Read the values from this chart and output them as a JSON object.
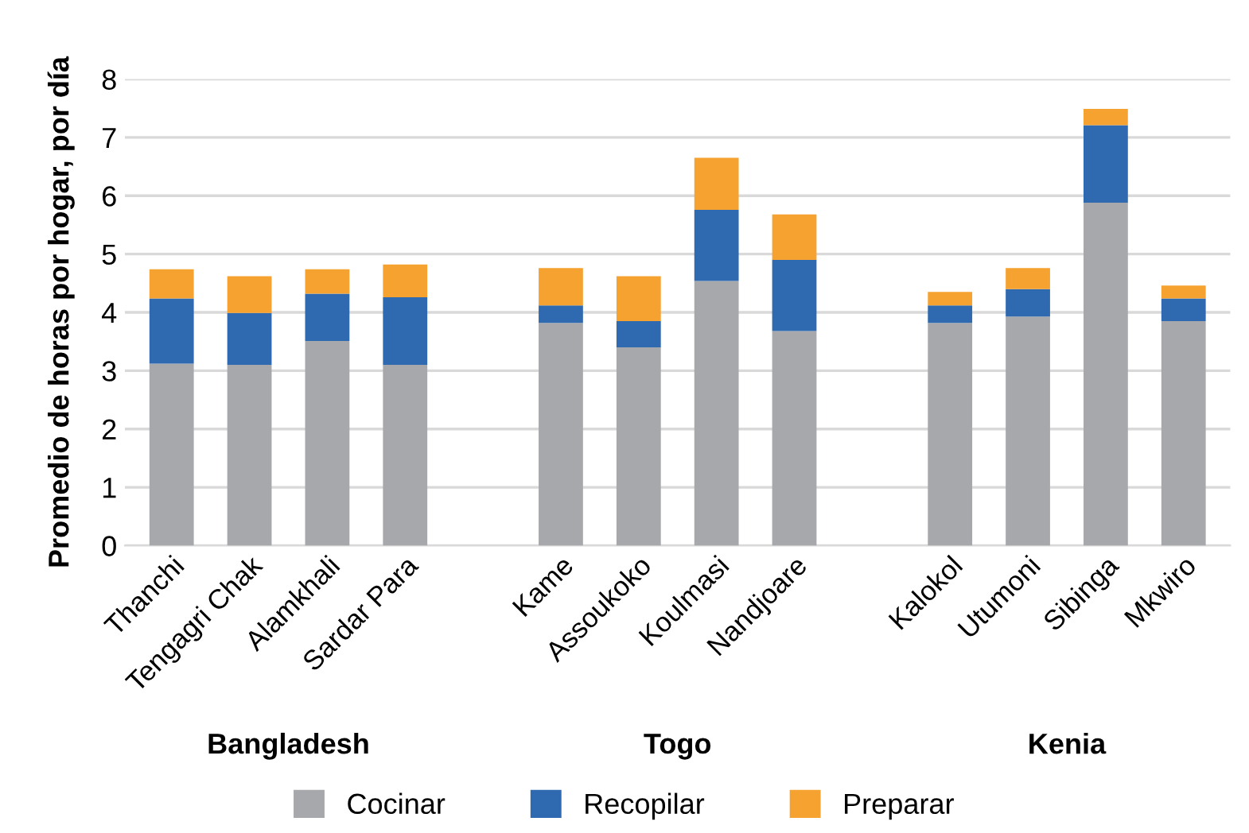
{
  "chart_data": {
    "type": "bar",
    "stacked": true,
    "ylabel": "Promedio de horas por hogar, por día",
    "categories": [
      "Thanchi",
      "Tengagri Chak",
      "Alamkhali",
      "Sardar Para",
      null,
      "Kame",
      "Assoukoko",
      "Koulmasi",
      "Nandjoare",
      null,
      "Kalokol",
      "Utumoni",
      "Sibinga",
      "Mkwiro"
    ],
    "series": [
      {
        "name": "Cocinar",
        "color": "#a7a8ab",
        "values": [
          3.12,
          3.1,
          3.51,
          3.1,
          null,
          3.82,
          3.4,
          4.54,
          3.68,
          null,
          3.82,
          3.93,
          5.88,
          3.85
        ]
      },
      {
        "name": "Recopilar",
        "color": "#2f69af",
        "values": [
          1.12,
          0.89,
          0.81,
          1.16,
          null,
          0.3,
          0.45,
          1.22,
          1.22,
          null,
          0.3,
          0.47,
          1.33,
          0.39
        ]
      },
      {
        "name": "Preparar",
        "color": "#f5a231",
        "values": [
          0.5,
          0.63,
          0.42,
          0.56,
          null,
          0.64,
          0.77,
          0.89,
          0.78,
          null,
          0.23,
          0.36,
          0.28,
          0.22
        ]
      }
    ],
    "annotations": [
      "Bangladesh",
      "Togo",
      "Kenia"
    ],
    "ylim": [
      0,
      8
    ],
    "yticks": [
      0,
      1,
      2,
      3,
      4,
      5,
      6,
      7,
      8
    ],
    "grid": "y",
    "legend": "bottom"
  }
}
